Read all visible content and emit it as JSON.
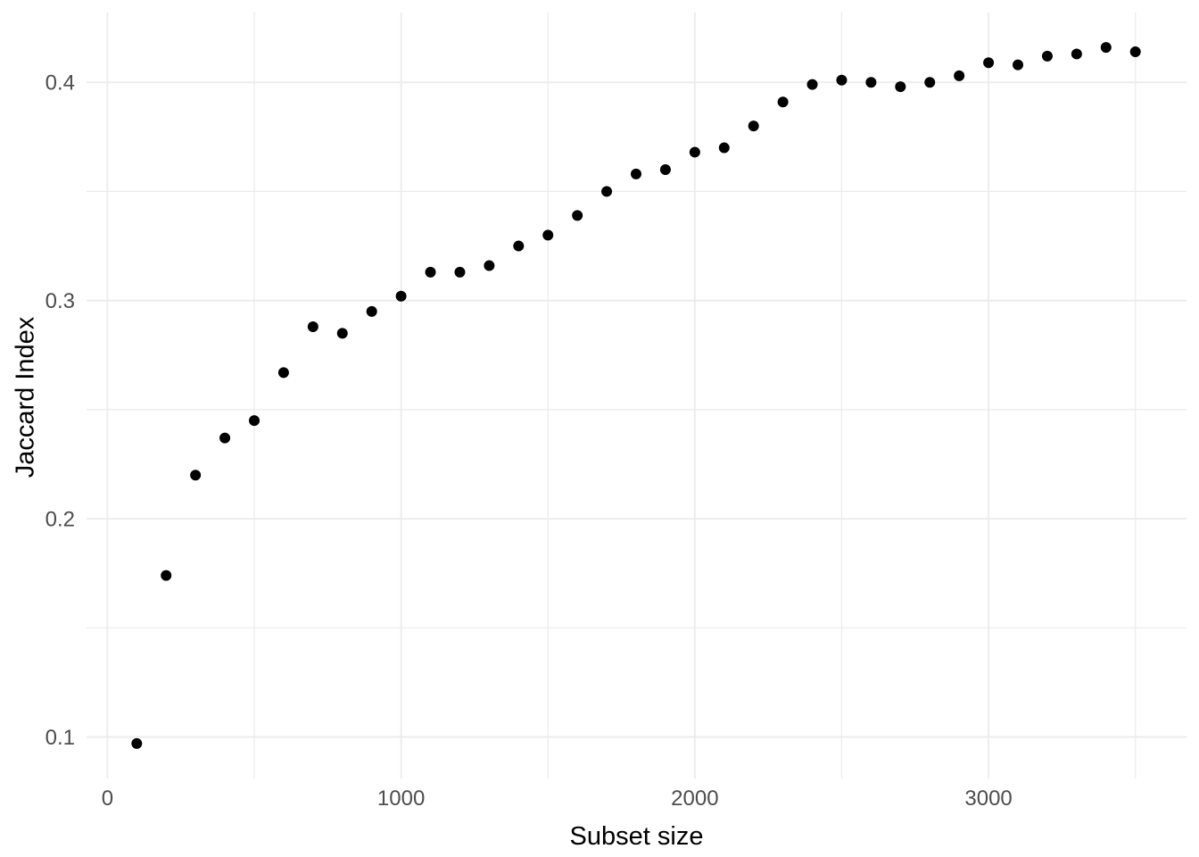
{
  "chart_data": {
    "type": "scatter",
    "title": "",
    "xlabel": "Subset size",
    "ylabel": "Jaccard Index",
    "x": [
      100,
      200,
      300,
      400,
      500,
      600,
      700,
      800,
      900,
      1000,
      1100,
      1200,
      1300,
      1400,
      1500,
      1600,
      1700,
      1800,
      1900,
      2000,
      2100,
      2200,
      2300,
      2400,
      2500,
      2600,
      2700,
      2800,
      2900,
      3000,
      3100,
      3200,
      3300,
      3400,
      3500
    ],
    "y": [
      0.097,
      0.174,
      0.22,
      0.237,
      0.245,
      0.267,
      0.288,
      0.285,
      0.295,
      0.302,
      0.313,
      0.313,
      0.316,
      0.325,
      0.33,
      0.339,
      0.35,
      0.358,
      0.36,
      0.368,
      0.37,
      0.38,
      0.391,
      0.399,
      0.401,
      0.4,
      0.398,
      0.4,
      0.403,
      0.409,
      0.408,
      0.412,
      0.413,
      0.416,
      0.414
    ],
    "xlim": [
      -71,
      3674
    ],
    "ylim": [
      0.081,
      0.432
    ],
    "x_ticks": {
      "values": [
        0,
        1000,
        2000,
        3000
      ],
      "labels": [
        "0",
        "1000",
        "2000",
        "3000"
      ]
    },
    "y_ticks": {
      "values": [
        0.1,
        0.2,
        0.3,
        0.4
      ],
      "labels": [
        "0.1",
        "0.2",
        "0.3",
        "0.4"
      ]
    },
    "x_minor_gridlines": [
      500,
      1500,
      2500,
      3500
    ],
    "y_minor_gridlines": [
      0.15,
      0.25,
      0.35
    ],
    "grid": "major+minor",
    "legend": "none",
    "axis_lines": "none",
    "style": {
      "theme": "ggplot2-theme-minimal",
      "background": "#FFFFFF",
      "grid_color": "#EBEBEB",
      "point_color": "#000000",
      "point_radius_px": 6,
      "tick_label_color": "#4D4D4D",
      "axis_title_color": "#000000"
    }
  }
}
